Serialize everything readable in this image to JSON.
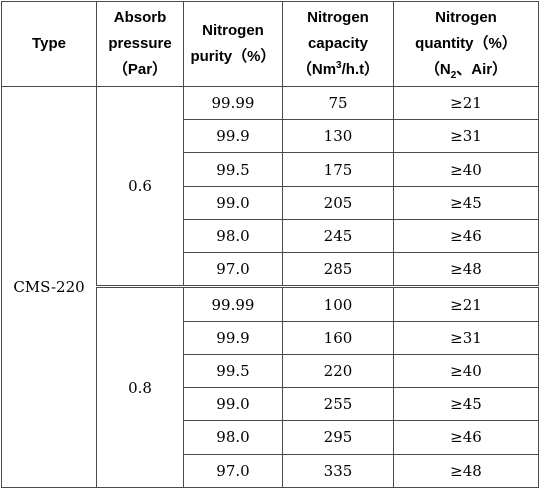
{
  "header": {
    "type": "Type",
    "pressure": [
      "Absorb",
      "pressure",
      "（Par）"
    ],
    "purity": [
      "Nitrogen",
      "purity（%）"
    ],
    "capacity_l1": "Nitrogen",
    "capacity_l2": "capacity",
    "capacity_l3a": "（Nm",
    "capacity_l3sup": "3",
    "capacity_l3b": "/h.t）",
    "quantity_l1": "Nitrogen",
    "quantity_l2": "quantity（%）",
    "quantity_l3a": "（N",
    "quantity_l3sub": "2",
    "quantity_l3b": "、Air）"
  },
  "type_value": "CMS-220",
  "groups": [
    {
      "pressure": "0.6",
      "rows": [
        {
          "purity": "99.99",
          "capacity": "75",
          "quantity": "≥21"
        },
        {
          "purity": "99.9",
          "capacity": "130",
          "quantity": "≥31"
        },
        {
          "purity": "99.5",
          "capacity": "175",
          "quantity": "≥40"
        },
        {
          "purity": "99.0",
          "capacity": "205",
          "quantity": "≥45"
        },
        {
          "purity": "98.0",
          "capacity": "245",
          "quantity": "≥46"
        },
        {
          "purity": "97.0",
          "capacity": "285",
          "quantity": "≥48"
        }
      ]
    },
    {
      "pressure": "0.8",
      "rows": [
        {
          "purity": "99.99",
          "capacity": "100",
          "quantity": "≥21"
        },
        {
          "purity": "99.9",
          "capacity": "160",
          "quantity": "≥31"
        },
        {
          "purity": "99.5",
          "capacity": "220",
          "quantity": "≥40"
        },
        {
          "purity": "99.0",
          "capacity": "255",
          "quantity": "≥45"
        },
        {
          "purity": "98.0",
          "capacity": "295",
          "quantity": "≥46"
        },
        {
          "purity": "97.0",
          "capacity": "335",
          "quantity": "≥48"
        }
      ]
    }
  ]
}
